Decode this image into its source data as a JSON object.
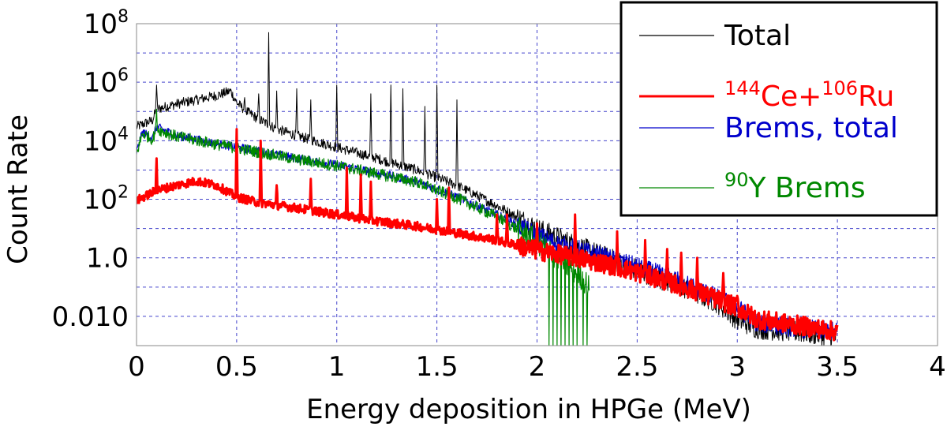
{
  "chart_data": {
    "type": "line",
    "title": "",
    "xlabel": "Energy deposition in HPGe (MeV)",
    "ylabel": "Count Rate",
    "xlim": [
      0,
      4
    ],
    "ylim": [
      0.001,
      100000000
    ],
    "yscale": "log",
    "grid": true,
    "legend_position": "top-right",
    "x_ticks": [
      0,
      0.5,
      1,
      1.5,
      2,
      2.5,
      3,
      3.5,
      4
    ],
    "x_tick_labels": [
      "0",
      "0.5",
      "1",
      "1.5",
      "2",
      "2.5",
      "3",
      "3.5",
      "4"
    ],
    "y_ticks": [
      0.01,
      1,
      100,
      10000,
      1000000,
      100000000
    ],
    "y_tick_labels": [
      {
        "base": "0.010",
        "exp": ""
      },
      {
        "base": "1.0",
        "exp": ""
      },
      {
        "base": "10",
        "exp": "2"
      },
      {
        "base": "10",
        "exp": "4"
      },
      {
        "base": "10",
        "exp": "6"
      },
      {
        "base": "10",
        "exp": "8"
      }
    ],
    "series": [
      {
        "name_parts": [
          {
            "t": "Total",
            "sup": false
          }
        ],
        "color": "#000000",
        "width": 1,
        "continuum": [
          [
            0,
            30000
          ],
          [
            0.08,
            50000
          ],
          [
            0.1,
            120000
          ],
          [
            0.2,
            180000
          ],
          [
            0.3,
            250000
          ],
          [
            0.4,
            350000
          ],
          [
            0.47,
            500000
          ],
          [
            0.5,
            200000
          ],
          [
            0.55,
            100000
          ],
          [
            0.6,
            60000
          ],
          [
            0.7,
            25000
          ],
          [
            0.8,
            15000
          ],
          [
            1.0,
            6000
          ],
          [
            1.2,
            2500
          ],
          [
            1.4,
            1000
          ],
          [
            1.6,
            300
          ],
          [
            1.8,
            60
          ],
          [
            2.0,
            10
          ],
          [
            2.1,
            5
          ],
          [
            2.2,
            2.5
          ],
          [
            2.5,
            0.4
          ],
          [
            2.7,
            0.12
          ],
          [
            2.9,
            0.03
          ],
          [
            3.0,
            0.008
          ],
          [
            3.1,
            0.004
          ],
          [
            3.3,
            0.003
          ],
          [
            3.5,
            0.002
          ]
        ],
        "peaks": [
          [
            0.1,
            800000
          ],
          [
            0.54,
            300000
          ],
          [
            0.61,
            400000
          ],
          [
            0.66,
            50000000
          ],
          [
            0.7,
            500000
          ],
          [
            0.8,
            600000
          ],
          [
            0.87,
            250000
          ],
          [
            1.0,
            800000
          ],
          [
            1.17,
            400000
          ],
          [
            1.27,
            800000
          ],
          [
            1.33,
            600000
          ],
          [
            1.44,
            150000
          ],
          [
            1.5,
            800000
          ],
          [
            1.6,
            250000
          ]
        ],
        "noise": 0.35,
        "end": 3.5
      },
      {
        "name_parts": [
          {
            "t": "144",
            "sup": true
          },
          {
            "t": "Ce+",
            "sup": false
          },
          {
            "t": "106",
            "sup": true
          },
          {
            "t": "Ru",
            "sup": false
          }
        ],
        "color": "#ff0000",
        "width": 3,
        "continuum": [
          [
            0,
            90
          ],
          [
            0.1,
            200
          ],
          [
            0.2,
            300
          ],
          [
            0.3,
            420
          ],
          [
            0.4,
            300
          ],
          [
            0.5,
            120
          ],
          [
            0.6,
            80
          ],
          [
            0.8,
            50
          ],
          [
            1.0,
            30
          ],
          [
            1.2,
            18
          ],
          [
            1.4,
            12
          ],
          [
            1.6,
            7
          ],
          [
            1.8,
            4
          ],
          [
            2.0,
            1.8
          ],
          [
            2.2,
            1.0
          ],
          [
            2.4,
            0.5
          ],
          [
            2.6,
            0.2
          ],
          [
            2.8,
            0.07
          ],
          [
            3.0,
            0.02
          ],
          [
            3.1,
            0.008
          ],
          [
            3.3,
            0.005
          ],
          [
            3.5,
            0.003
          ]
        ],
        "peaks": [
          [
            0.1,
            2500
          ],
          [
            0.5,
            25000
          ],
          [
            0.62,
            10000
          ],
          [
            0.7,
            300
          ],
          [
            0.87,
            500
          ],
          [
            1.05,
            1200
          ],
          [
            1.12,
            700
          ],
          [
            1.17,
            400
          ],
          [
            1.5,
            100
          ],
          [
            1.56,
            250
          ],
          [
            1.8,
            30
          ],
          [
            1.85,
            30
          ],
          [
            2.0,
            15
          ],
          [
            2.19,
            30
          ],
          [
            2.4,
            8
          ],
          [
            2.54,
            4
          ],
          [
            2.65,
            2
          ],
          [
            2.72,
            1.5
          ],
          [
            2.8,
            1.0
          ],
          [
            2.93,
            0.3
          ],
          [
            3.0,
            0.05
          ]
        ],
        "noise": 0.3,
        "end": 3.5
      },
      {
        "name_parts": [
          {
            "t": "Brems, total",
            "sup": false
          }
        ],
        "color": "#0000cc",
        "width": 1.2,
        "continuum": [
          [
            0,
            4000
          ],
          [
            0.03,
            20000
          ],
          [
            0.08,
            12000
          ],
          [
            0.1,
            30000
          ],
          [
            0.2,
            15000
          ],
          [
            0.4,
            8000
          ],
          [
            0.6,
            4500
          ],
          [
            0.8,
            2500
          ],
          [
            1.0,
            1500
          ],
          [
            1.2,
            800
          ],
          [
            1.4,
            400
          ],
          [
            1.6,
            120
          ],
          [
            1.8,
            30
          ],
          [
            2.0,
            6
          ],
          [
            2.1,
            3
          ],
          [
            2.2,
            2
          ],
          [
            2.4,
            0.8
          ],
          [
            2.6,
            0.3
          ],
          [
            2.8,
            0.09
          ],
          [
            3.0,
            0.02
          ],
          [
            3.1,
            0.006
          ],
          [
            3.3,
            0.004
          ],
          [
            3.5,
            0.003
          ]
        ],
        "peaks": [],
        "noise": 0.3,
        "end": 3.5
      },
      {
        "name_parts": [
          {
            "t": "90",
            "sup": true
          },
          {
            "t": "Y Brems",
            "sup": false
          }
        ],
        "color": "#008800",
        "width": 1.2,
        "continuum": [
          [
            0,
            3500
          ],
          [
            0.03,
            18000
          ],
          [
            0.08,
            11000
          ],
          [
            0.1,
            25000
          ],
          [
            0.2,
            14000
          ],
          [
            0.4,
            7500
          ],
          [
            0.6,
            4200
          ],
          [
            0.8,
            2300
          ],
          [
            1.0,
            1400
          ],
          [
            1.2,
            750
          ],
          [
            1.4,
            380
          ],
          [
            1.6,
            110
          ],
          [
            1.8,
            25
          ],
          [
            1.95,
            6
          ],
          [
            2.05,
            2
          ],
          [
            2.1,
            1
          ],
          [
            2.2,
            0.3
          ],
          [
            2.26,
            0.1
          ]
        ],
        "peaks": [
          [
            0.1,
            120000
          ]
        ],
        "noise": 0.4,
        "end": 2.26,
        "dropouts": [
          2.06,
          2.08,
          2.1,
          2.12,
          2.14,
          2.16,
          2.18,
          2.2,
          2.23,
          2.25
        ]
      }
    ]
  }
}
